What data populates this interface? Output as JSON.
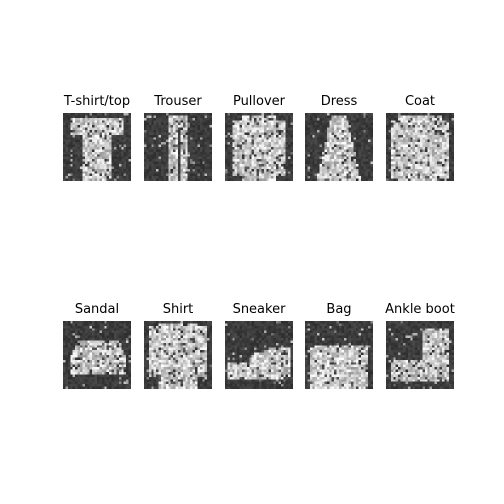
{
  "figure": {
    "background": "#ffffff",
    "grid": {
      "rows": 2,
      "cols": 5
    },
    "panels": [
      {
        "label": "T-shirt/top",
        "icon": "tshirt-sample"
      },
      {
        "label": "Trouser",
        "icon": "trouser-sample"
      },
      {
        "label": "Pullover",
        "icon": "pullover-sample"
      },
      {
        "label": "Dress",
        "icon": "dress-sample"
      },
      {
        "label": "Coat",
        "icon": "coat-sample"
      },
      {
        "label": "Sandal",
        "icon": "sandal-sample"
      },
      {
        "label": "Shirt",
        "icon": "shirt-sample"
      },
      {
        "label": "Sneaker",
        "icon": "sneaker-sample"
      },
      {
        "label": "Bag",
        "icon": "bag-sample"
      },
      {
        "label": "Ankle boot",
        "icon": "ankle-boot-sample"
      }
    ]
  }
}
